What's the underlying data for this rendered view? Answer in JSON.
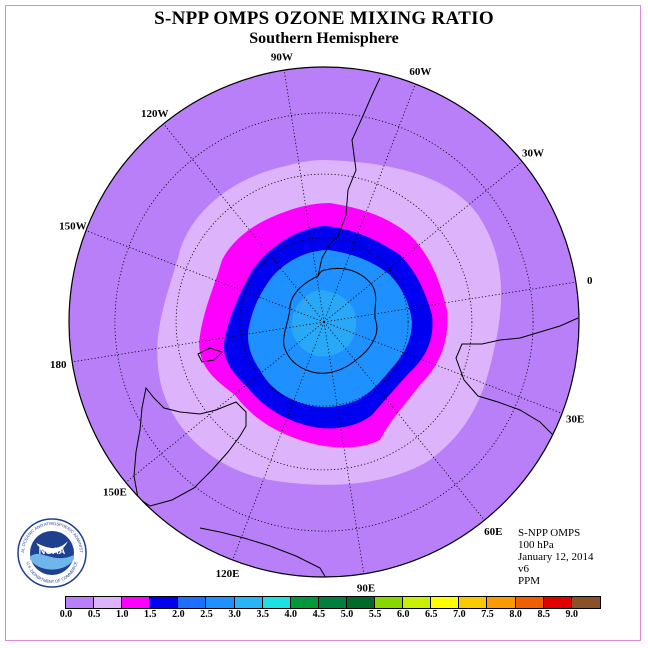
{
  "title": "S-NPP OMPS OZONE MIXING RATIO",
  "subtitle": "Southern Hemisphere",
  "map": {
    "projection": "polar stereographic, south pole",
    "longitude_labels": [
      "90W",
      "60W",
      "30W",
      "0",
      "30E",
      "60E",
      "90E",
      "120E",
      "150E",
      "180",
      "150W",
      "120W"
    ],
    "ozone_field_ppm": [
      {
        "band": "0.0-0.5",
        "region": "outer",
        "color": "#b87ff8"
      },
      {
        "band": "0.5-1.0",
        "region": "mid-latitudes",
        "color": "#ddb4fb"
      },
      {
        "band": "1.0-1.5",
        "region": "vortex edge",
        "color": "#ff00ff"
      },
      {
        "band": "1.5-2.0",
        "region": "vortex ring",
        "color": "#0000f0"
      },
      {
        "band": "2.0-2.5",
        "region": "vortex interior",
        "color": "#1e90ff"
      },
      {
        "band": "2.5-3.0",
        "region": "vortex core",
        "color": "#2aa8f8"
      }
    ]
  },
  "info": {
    "instrument": "S-NPP OMPS",
    "level": "100 hPa",
    "date": "January 12, 2014",
    "version": "v6",
    "units": "PPM"
  },
  "colorbar": {
    "labels": [
      "0.0",
      "0.5",
      "1.0",
      "1.5",
      "2.0",
      "2.5",
      "3.0",
      "3.5",
      "4.0",
      "4.5",
      "5.0",
      "5.5",
      "6.0",
      "6.5",
      "7.0",
      "7.5",
      "8.0",
      "8.5",
      "9.0"
    ],
    "colors": [
      "#b87ff8",
      "#ddb4fb",
      "#ff00ff",
      "#0000f0",
      "#1e6fff",
      "#1e90ff",
      "#2ab4f8",
      "#1ee0e0",
      "#009a3a",
      "#00803a",
      "#006a28",
      "#88d800",
      "#c8f000",
      "#ffff00",
      "#f8c800",
      "#f89a00",
      "#f06000",
      "#e00000",
      "#8a5028"
    ]
  },
  "logo": {
    "text": "NOAA",
    "ring_text": "NATIONAL OCEANIC AND ATMOSPHERIC ADMINISTRATION",
    "ring_text_bottom": "U.S. DEPARTMENT OF COMMERCE"
  }
}
